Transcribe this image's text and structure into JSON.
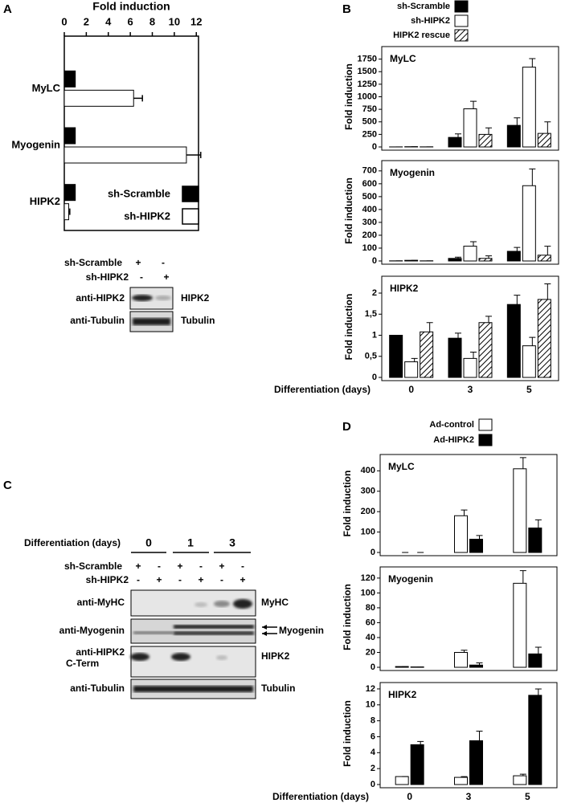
{
  "panel_labels": [
    "A",
    "B",
    "C",
    "D"
  ],
  "chart_data": [
    {
      "type": "barh",
      "title": "Fold induction",
      "categories": [
        "MyLC",
        "Myogenin",
        "HIPK2"
      ],
      "series": [
        {
          "name": "sh-Scramble",
          "color": "#000000",
          "values": [
            1,
            1,
            1
          ]
        },
        {
          "name": "sh-HIPK2",
          "color": "#ffffff",
          "values": [
            6.3,
            11.1,
            0.4
          ],
          "errors": [
            0.8,
            1.3,
            0.1
          ]
        }
      ],
      "xlim": [
        0,
        12.2
      ],
      "xticks": [
        0,
        2,
        4,
        6,
        8,
        10,
        12
      ],
      "legend": "lower right"
    },
    {
      "type": "bar",
      "title": "MyLC",
      "y_label": "Fold induction",
      "series": [
        {
          "name": "sh-Scramble",
          "color": "#000000",
          "values": [
            1,
            190,
            430
          ],
          "errors": [
            0,
            70,
            150
          ]
        },
        {
          "name": "sh-HIPK2",
          "color": "#ffffff",
          "values": [
            5,
            760,
            1590
          ],
          "errors": [
            0,
            150,
            170
          ]
        },
        {
          "name": "HIPK2 rescue",
          "color": "#ffffff",
          "hatch": true,
          "values": [
            2,
            250,
            270
          ],
          "errors": [
            0,
            130,
            230
          ]
        }
      ],
      "ylim": [
        0,
        2000
      ],
      "yticks": [
        0,
        250,
        500,
        750,
        1000,
        1250,
        1500,
        1750
      ],
      "legend": "top"
    },
    {
      "type": "bar",
      "title": "Myogenin",
      "y_label": "Fold induction",
      "series": [
        {
          "color": "#000000",
          "values": [
            1,
            20,
            75
          ],
          "errors": [
            0,
            10,
            30
          ]
        },
        {
          "color": "#ffffff",
          "values": [
            5,
            115,
            585
          ],
          "errors": [
            0,
            35,
            130
          ]
        },
        {
          "color": "#ffffff",
          "hatch": true,
          "values": [
            1,
            20,
            45
          ],
          "errors": [
            0,
            20,
            70
          ]
        }
      ],
      "ylim": [
        0,
        780
      ],
      "yticks": [
        0,
        100,
        200,
        300,
        400,
        500,
        600,
        700
      ]
    },
    {
      "type": "bar",
      "title": "HIPK2",
      "y_label": "Fold induction",
      "x_label": "Differentiation (days)",
      "categories": [
        "0",
        "3",
        "5"
      ],
      "series": [
        {
          "color": "#000000",
          "values": [
            1,
            0.93,
            1.73
          ],
          "errors": [
            0,
            0.12,
            0.22
          ]
        },
        {
          "color": "#ffffff",
          "values": [
            0.37,
            0.45,
            0.75
          ],
          "errors": [
            0.08,
            0.15,
            0.2
          ]
        },
        {
          "color": "#ffffff",
          "hatch": true,
          "values": [
            1.08,
            1.3,
            1.85
          ],
          "errors": [
            0.22,
            0.15,
            0.37
          ]
        }
      ],
      "ylim": [
        0,
        2.4
      ],
      "yticks": [
        0,
        {
          "value": 0.5,
          "label": "0,5"
        },
        1,
        {
          "value": 1.5,
          "label": "1,5"
        },
        2
      ]
    },
    {
      "type": "bar",
      "title": "MyLC",
      "y_label": "Fold induction",
      "series": [
        {
          "name": "Ad-control",
          "color": "#ffffff",
          "values": [
            0,
            180,
            410
          ],
          "errors": [
            0,
            28,
            55
          ]
        },
        {
          "name": "Ad-HIPK2",
          "color": "#000000",
          "values": [
            0,
            65,
            120
          ],
          "errors": [
            0,
            18,
            40
          ]
        }
      ],
      "ylim": [
        0,
        480
      ],
      "yticks": [
        0,
        100,
        200,
        300,
        400
      ],
      "legend": "top"
    },
    {
      "type": "bar",
      "title": "Myogenin",
      "y_label": "Fold induction",
      "series": [
        {
          "color": "#ffffff",
          "values": [
            1,
            20,
            113
          ],
          "errors": [
            0,
            3,
            17
          ]
        },
        {
          "color": "#000000",
          "values": [
            0.5,
            3,
            18
          ],
          "errors": [
            0,
            3,
            9
          ]
        }
      ],
      "ylim": [
        0,
        135
      ],
      "yticks": [
        0,
        20,
        40,
        60,
        80,
        100,
        120
      ]
    },
    {
      "type": "bar",
      "title": "HIPK2",
      "y_label": "Fold induction",
      "x_label": "Differentiation (days)",
      "categories": [
        "0",
        "3",
        "5"
      ],
      "series": [
        {
          "color": "#ffffff",
          "values": [
            1,
            0.9,
            1.1
          ],
          "errors": [
            0,
            0.1,
            0.2
          ]
        },
        {
          "color": "#000000",
          "values": [
            5,
            5.5,
            11.2
          ],
          "errors": [
            0.4,
            1.2,
            0.8
          ]
        }
      ],
      "ylim": [
        0,
        12.8
      ],
      "yticks": [
        0,
        2,
        4,
        6,
        8,
        10,
        12
      ]
    }
  ],
  "blot_a": {
    "rows": [
      {
        "label": "sh-Scramble",
        "lanes": [
          "+",
          "-"
        ]
      },
      {
        "label": "sh-HIPK2",
        "lanes": [
          "-",
          "+"
        ]
      }
    ],
    "bands": [
      {
        "antibody": "anti-HIPK2",
        "protein": "HIPK2"
      },
      {
        "antibody": "anti-Tubulin",
        "protein": "Tubulin"
      }
    ]
  },
  "blot_c": {
    "x_label": "Differentiation (days)",
    "groups": [
      "0",
      "1",
      "3"
    ],
    "rows": [
      {
        "label": "sh-Scramble",
        "lanes": [
          "+",
          "-",
          "+",
          "-",
          "+",
          "-"
        ]
      },
      {
        "label": "sh-HIPK2",
        "lanes": [
          "-",
          "+",
          "-",
          "+",
          "-",
          "+"
        ]
      }
    ],
    "bands": [
      {
        "antibody": [
          "anti-MyHC"
        ],
        "protein": "MyHC"
      },
      {
        "antibody": [
          "anti-Myogenin"
        ],
        "protein": "Myogenin"
      },
      {
        "antibody": [
          "anti-HIPK2",
          "C-Term"
        ],
        "protein": "HIPK2"
      },
      {
        "antibody": [
          "anti-Tubulin"
        ],
        "protein": "Tubulin"
      }
    ]
  }
}
